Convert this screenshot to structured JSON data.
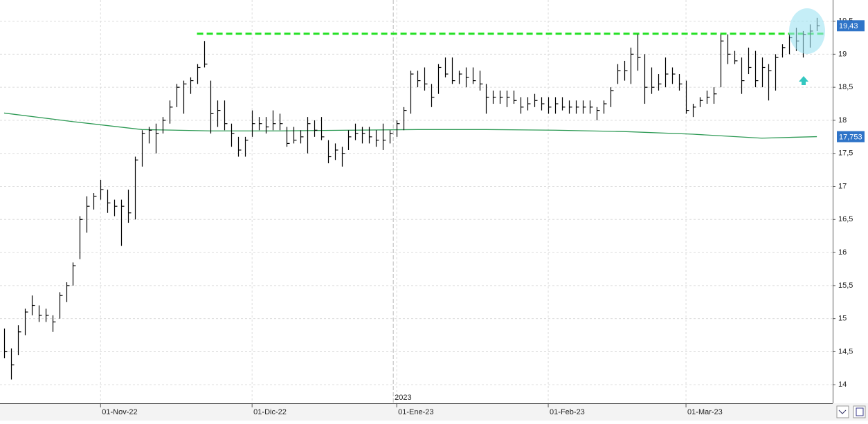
{
  "chart_data": {
    "type": "ohlc",
    "color": "#000000",
    "high": [
      14.85,
      14.55,
      14.9,
      15.15,
      15.35,
      15.2,
      15.15,
      15.05,
      15.4,
      15.55,
      15.85,
      16.55,
      16.85,
      16.9,
      17.1,
      16.95,
      16.8,
      16.8,
      16.95,
      17.45,
      17.85,
      17.9,
      17.95,
      18.05,
      18.3,
      18.55,
      18.6,
      18.65,
      18.85,
      19.2,
      18.6,
      18.3,
      18.3,
      17.95,
      17.75,
      17.75,
      18.15,
      18.05,
      18.05,
      18.15,
      18.1,
      17.9,
      17.9,
      17.85,
      18.05,
      18.0,
      18.05,
      17.7,
      17.65,
      17.6,
      17.85,
      17.95,
      17.9,
      17.9,
      17.85,
      17.95,
      17.85,
      18.0,
      18.2,
      18.75,
      18.75,
      18.8,
      18.55,
      18.85,
      18.95,
      18.95,
      18.75,
      18.8,
      18.8,
      18.75,
      18.55,
      18.45,
      18.45,
      18.45,
      18.45,
      18.35,
      18.35,
      18.4,
      18.35,
      18.35,
      18.35,
      18.35,
      18.3,
      18.3,
      18.3,
      18.3,
      18.2,
      18.3,
      18.5,
      18.85,
      18.9,
      19.1,
      19.3,
      19.0,
      18.8,
      18.7,
      18.95,
      18.8,
      18.7,
      18.6,
      18.25,
      18.35,
      18.45,
      18.5,
      19.3,
      19.3,
      19.05,
      18.95,
      19.1,
      19.05,
      18.95,
      18.85,
      19.0,
      19.15,
      19.3,
      19.4,
      19.35,
      19.45,
      19.55
    ],
    "low": [
      14.4,
      14.08,
      14.45,
      14.75,
      15.05,
      14.95,
      14.95,
      14.8,
      15.0,
      15.25,
      15.5,
      15.9,
      16.3,
      16.65,
      16.8,
      16.6,
      16.55,
      16.1,
      16.45,
      16.5,
      17.3,
      17.65,
      17.5,
      17.8,
      17.95,
      18.2,
      18.1,
      18.4,
      18.55,
      18.8,
      17.8,
      17.9,
      17.85,
      17.6,
      17.45,
      17.45,
      17.75,
      17.85,
      17.8,
      17.85,
      17.85,
      17.6,
      17.65,
      17.65,
      17.5,
      17.75,
      17.7,
      17.35,
      17.4,
      17.3,
      17.55,
      17.7,
      17.65,
      17.65,
      17.6,
      17.55,
      17.65,
      17.75,
      17.85,
      18.1,
      18.5,
      18.45,
      18.2,
      18.4,
      18.65,
      18.55,
      18.55,
      18.5,
      18.55,
      18.45,
      18.1,
      18.25,
      18.25,
      18.2,
      18.25,
      18.1,
      18.15,
      18.2,
      18.15,
      18.1,
      18.1,
      18.15,
      18.1,
      18.1,
      18.1,
      18.1,
      18.0,
      18.1,
      18.2,
      18.55,
      18.6,
      18.55,
      18.75,
      18.25,
      18.4,
      18.45,
      18.5,
      18.55,
      18.45,
      18.1,
      18.05,
      18.2,
      18.25,
      18.25,
      18.5,
      18.85,
      18.85,
      18.4,
      18.7,
      18.5,
      18.5,
      18.3,
      18.45,
      18.95,
      19.0,
      19.05,
      18.95,
      19.1,
      19.35
    ],
    "close": [
      14.5,
      14.3,
      14.8,
      15.1,
      15.2,
      15.05,
      15.05,
      14.95,
      15.35,
      15.5,
      15.8,
      16.5,
      16.7,
      16.85,
      16.95,
      16.75,
      16.7,
      16.7,
      16.6,
      17.4,
      17.8,
      17.85,
      17.8,
      18.0,
      18.2,
      18.5,
      18.55,
      18.6,
      18.8,
      18.85,
      18.1,
      18.15,
      17.95,
      17.8,
      17.55,
      17.7,
      17.95,
      17.95,
      17.9,
      17.95,
      17.95,
      17.65,
      17.7,
      17.75,
      17.95,
      17.85,
      17.75,
      17.45,
      17.55,
      17.5,
      17.75,
      17.8,
      17.8,
      17.75,
      17.7,
      17.7,
      17.8,
      17.95,
      18.15,
      18.7,
      18.6,
      18.55,
      18.35,
      18.8,
      18.7,
      18.6,
      18.7,
      18.65,
      18.6,
      18.55,
      18.35,
      18.35,
      18.35,
      18.35,
      18.3,
      18.2,
      18.25,
      18.3,
      18.25,
      18.2,
      18.25,
      18.2,
      18.2,
      18.2,
      18.2,
      18.2,
      18.15,
      18.25,
      18.45,
      18.75,
      18.75,
      19.0,
      18.95,
      18.5,
      18.5,
      18.55,
      18.7,
      18.7,
      18.55,
      18.15,
      18.2,
      18.3,
      18.35,
      18.4,
      19.2,
      19.0,
      18.9,
      18.6,
      18.8,
      18.6,
      18.8,
      18.75,
      18.95,
      19.1,
      19.25,
      19.2,
      19.3,
      19.35,
      19.43
    ],
    "moving_average": {
      "color": "#2e9a55",
      "x": [
        0,
        10,
        20,
        30,
        40,
        50,
        60,
        70,
        80,
        90,
        100,
        110,
        118
      ],
      "values": [
        18.11,
        17.98,
        17.86,
        17.84,
        17.84,
        17.85,
        17.86,
        17.86,
        17.85,
        17.83,
        17.79,
        17.73,
        17.753
      ]
    },
    "resistance": {
      "value": 19.31,
      "x": [
        28,
        119
      ],
      "color": "#22e022"
    },
    "price_tags": [
      {
        "value": 19.43,
        "label": "19,43",
        "color": "#2f74c8"
      },
      {
        "value": 17.753,
        "label": "17,753",
        "color": "#2f74c8"
      }
    ],
    "xlim": [
      -0.6,
      120.3
    ],
    "xticks": [
      {
        "value": 14,
        "label": "01-Nov-22"
      },
      {
        "value": 36,
        "label": "01-Dic-22"
      },
      {
        "value": 57,
        "label": "01-Ene-23"
      },
      {
        "value": 79,
        "label": "01-Feb-23"
      },
      {
        "value": 99,
        "label": "01-Mar-23"
      }
    ],
    "year_divider": {
      "x": 56.5,
      "label": "2023"
    },
    "ylim": [
      13.72,
      19.82
    ],
    "yticks": [
      14,
      {
        "value": 14.5,
        "label": "14,5"
      },
      15,
      {
        "value": 15.5,
        "label": "15,5"
      },
      16,
      {
        "value": 16.5,
        "label": "16,5"
      },
      17,
      {
        "value": 17.5,
        "label": "17,5"
      },
      18,
      {
        "value": 18.5,
        "label": "18,5"
      },
      19,
      {
        "value": 19.5,
        "label": "19,5"
      }
    ],
    "grid": true
  }
}
